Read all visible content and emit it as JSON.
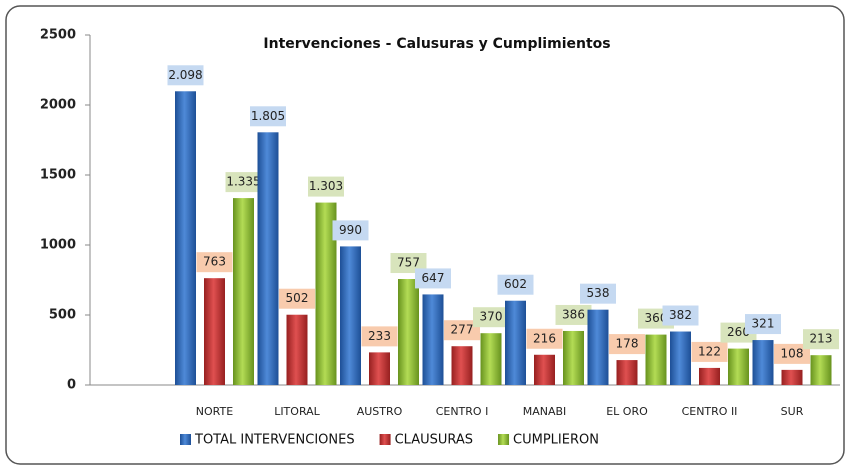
{
  "chart_data": {
    "type": "bar",
    "title": "Intervenciones - Calusuras y Cumplimientos",
    "categories": [
      "NORTE",
      "LITORAL",
      "AUSTRO",
      "CENTRO I",
      "MANABI",
      "EL ORO",
      "CENTRO II",
      "SUR"
    ],
    "series": [
      {
        "name": "TOTAL INTERVENCIONES",
        "color": "#2f6bbf",
        "values": [
          2098,
          1805,
          990,
          647,
          602,
          538,
          382,
          321
        ],
        "value_labels": [
          "2.098",
          "1.805",
          "990",
          "647",
          "602",
          "538",
          "382",
          "321"
        ]
      },
      {
        "name": "CLAUSURAS",
        "color": "#c8302c",
        "values": [
          763,
          502,
          233,
          277,
          216,
          178,
          122,
          108
        ]
      },
      {
        "name": "CUMPLIERON",
        "color": "#8cbf2f",
        "values": [
          1335,
          1303,
          757,
          370,
          386,
          360,
          260,
          213
        ],
        "value_labels": [
          "1.335",
          "1.303",
          "757",
          "370",
          "386",
          "360",
          "260",
          "213"
        ]
      }
    ],
    "ylim": [
      0,
      2500
    ],
    "yticks": [
      0,
      500,
      1000,
      1500,
      2000,
      2500
    ],
    "grid": false,
    "legend": "bottom"
  }
}
